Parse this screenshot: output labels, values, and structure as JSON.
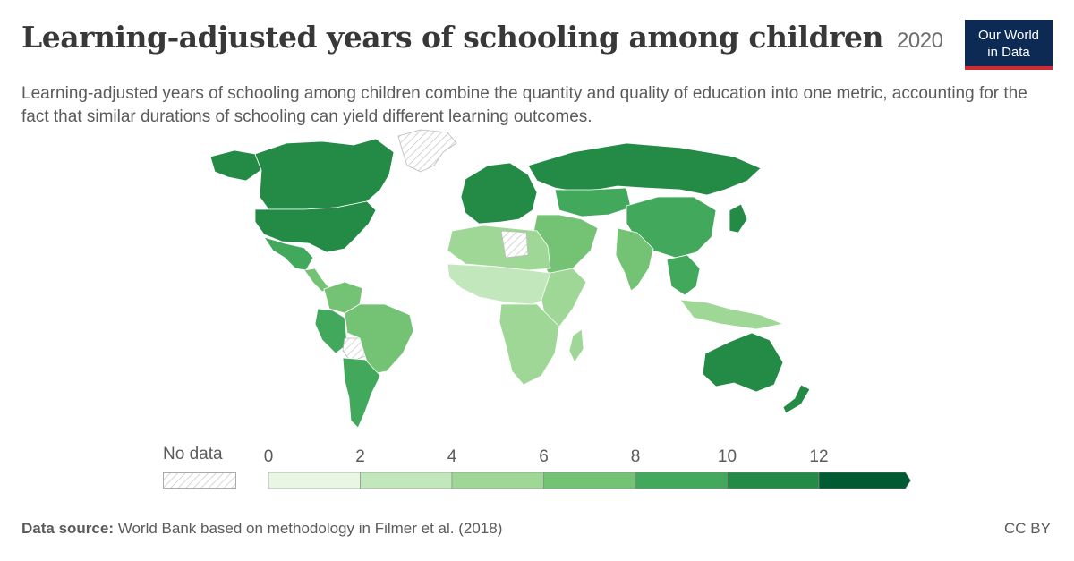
{
  "header": {
    "title": "Learning-adjusted years of schooling among children",
    "year": "2020",
    "subtitle": "Learning-adjusted years of schooling among children combine the quantity and quality of education into one metric, accounting for the fact that similar durations of schooling can yield different learning outcomes."
  },
  "logo": {
    "line1": "Our World",
    "line2": "in Data"
  },
  "legend": {
    "no_data_label": "No data",
    "ticks": [
      "0",
      "2",
      "4",
      "6",
      "8",
      "10",
      "12"
    ],
    "bins": [
      {
        "from": 0,
        "to": 2,
        "color": "#e8f6e3"
      },
      {
        "from": 2,
        "to": 4,
        "color": "#c3e7bc"
      },
      {
        "from": 4,
        "to": 6,
        "color": "#9fd796"
      },
      {
        "from": 6,
        "to": 8,
        "color": "#74c375"
      },
      {
        "from": 8,
        "to": 10,
        "color": "#42a85c"
      },
      {
        "from": 10,
        "to": 12,
        "color": "#248b47"
      },
      {
        "from": 12,
        "to": 14,
        "color": "#005a32"
      }
    ]
  },
  "map": {
    "regions": [
      {
        "name": "Canada",
        "value": 11.0
      },
      {
        "name": "United States",
        "value": 11.1
      },
      {
        "name": "Mexico",
        "value": 8.8
      },
      {
        "name": "Brazil",
        "value": 7.6
      },
      {
        "name": "Argentina",
        "value": 9.0
      },
      {
        "name": "Chile",
        "value": 9.6
      },
      {
        "name": "Russia",
        "value": 11.0
      },
      {
        "name": "China",
        "value": 9.7
      },
      {
        "name": "India",
        "value": 7.7
      },
      {
        "name": "Australia",
        "value": 11.6
      },
      {
        "name": "Nigeria",
        "value": 5.0
      },
      {
        "name": "Kenya",
        "value": 7.7
      }
    ]
  },
  "footer": {
    "source_label": "Data source:",
    "source_text": "World Bank based on methodology in Filmer et al. (2018)",
    "license": "CC BY"
  }
}
